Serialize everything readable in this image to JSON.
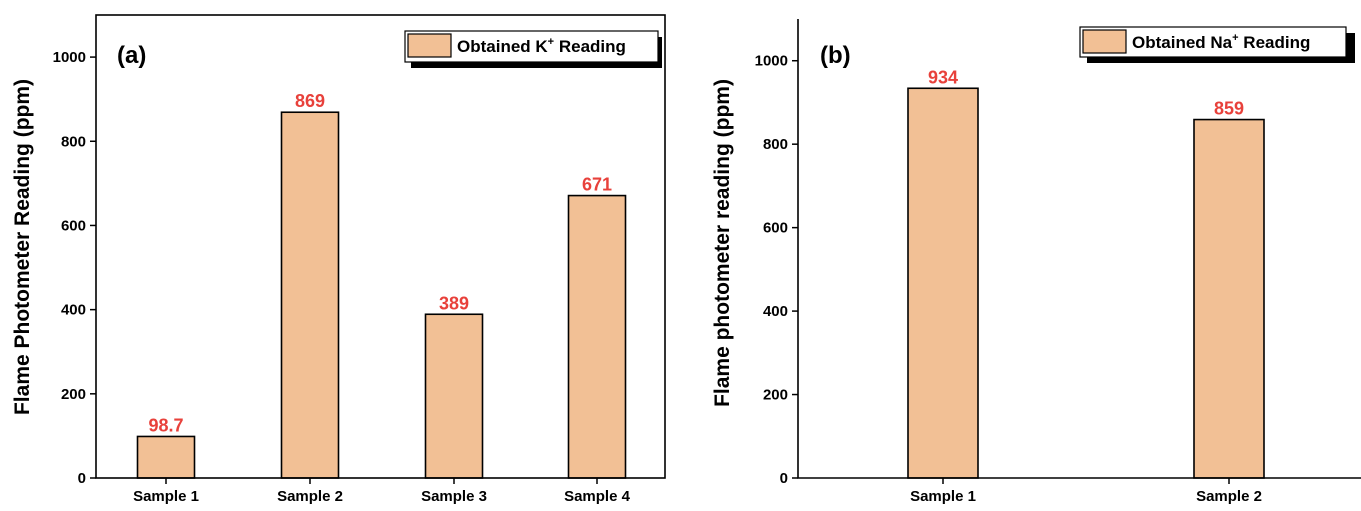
{
  "colors": {
    "bar": "#F2C095",
    "data_label": "#E8413B",
    "axis": "#000000"
  },
  "chart_data": [
    {
      "type": "bar",
      "panel_label": "(a)",
      "categories": [
        "Sample 1",
        "Sample 2",
        "Sample 3",
        "Sample 4"
      ],
      "values": [
        98.7,
        869,
        389,
        671
      ],
      "data_labels": [
        "98.7",
        "869",
        "389",
        "671"
      ],
      "xlabel": "",
      "ylabel": "Flame Photometer Reading (ppm)",
      "ylim": [
        0,
        1100
      ],
      "yticks": [
        0,
        200,
        400,
        600,
        800,
        1000
      ],
      "legend": {
        "text": "Obtained K",
        "superscript": "+",
        "suffix": " Reading",
        "placement": "top-right"
      },
      "grid": false
    },
    {
      "type": "bar",
      "panel_label": "(b)",
      "categories": [
        "Sample 1",
        "Sample 2"
      ],
      "values": [
        934,
        859
      ],
      "data_labels": [
        "934",
        "859"
      ],
      "xlabel": "",
      "ylabel": "Flame photometer reading (ppm)",
      "ylim": [
        0,
        1100
      ],
      "yticks": [
        0,
        200,
        400,
        600,
        800,
        1000
      ],
      "legend": {
        "text": "Obtained Na",
        "superscript": "+",
        "suffix": " Reading",
        "placement": "top-right"
      },
      "grid": false
    }
  ]
}
